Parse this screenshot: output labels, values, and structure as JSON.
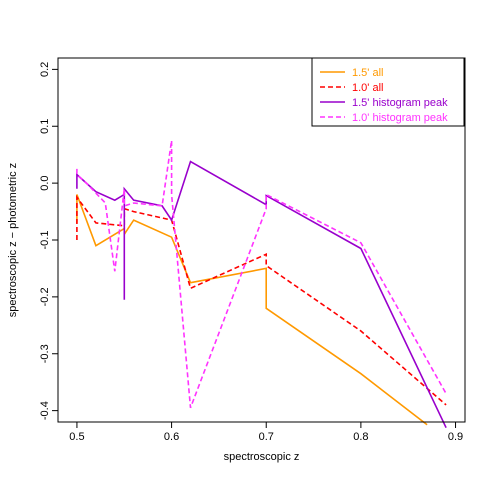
{
  "chart_data": {
    "type": "line",
    "title": "",
    "xlabel": "spectroscopic z",
    "ylabel": "spectroscopic z − photometric z",
    "xlim": [
      0.48,
      0.91
    ],
    "ylim": [
      -0.42,
      0.22
    ],
    "x_ticks": [
      "0.5",
      "0.6",
      "0.7",
      "0.8",
      "0.9"
    ],
    "y_ticks": [
      "-0.4",
      "-0.3",
      "-0.2",
      "-0.1",
      "0.0",
      "0.1",
      "0.2"
    ],
    "grid": false,
    "legend_position": "top-right",
    "series": [
      {
        "name": "1.5' all",
        "color": "#ff9900",
        "dashed": false,
        "x": [
          0.5,
          0.5,
          0.52,
          0.55,
          0.55,
          0.56,
          0.6,
          0.62,
          0.7,
          0.7,
          0.8,
          0.87
        ],
        "y": [
          -0.07,
          -0.02,
          -0.11,
          -0.08,
          -0.09,
          -0.065,
          -0.095,
          -0.175,
          -0.15,
          -0.22,
          -0.335,
          -0.425
        ]
      },
      {
        "name": "1.0' all",
        "color": "#ff0000",
        "dashed": true,
        "x": [
          0.5,
          0.5,
          0.52,
          0.55,
          0.55,
          0.56,
          0.6,
          0.62,
          0.7,
          0.7,
          0.8,
          0.89
        ],
        "y": [
          -0.1,
          -0.025,
          -0.07,
          -0.075,
          -0.045,
          -0.05,
          -0.065,
          -0.185,
          -0.125,
          -0.145,
          -0.26,
          -0.39
        ]
      },
      {
        "name": "1.5' histogram peak",
        "color": "#9900cc",
        "dashed": false,
        "x": [
          0.5,
          0.5,
          0.52,
          0.54,
          0.55,
          0.55,
          0.55,
          0.56,
          0.59,
          0.6,
          0.62,
          0.7,
          0.7,
          0.8,
          0.89
        ],
        "y": [
          -0.01,
          0.015,
          -0.015,
          -0.03,
          -0.02,
          -0.205,
          -0.01,
          -0.03,
          -0.04,
          -0.065,
          0.038,
          -0.038,
          -0.022,
          -0.115,
          -0.43
        ]
      },
      {
        "name": "1.0' histogram peak",
        "color": "#ff33ff",
        "dashed": true,
        "x": [
          0.5,
          0.5,
          0.51,
          0.53,
          0.54,
          0.55,
          0.55,
          0.56,
          0.59,
          0.6,
          0.6,
          0.62,
          0.7,
          0.7,
          0.8,
          0.89
        ],
        "y": [
          0.025,
          0.015,
          0.0,
          -0.035,
          -0.155,
          -0.01,
          -0.04,
          -0.035,
          -0.04,
          0.075,
          -0.02,
          -0.395,
          -0.045,
          -0.02,
          -0.105,
          -0.37
        ]
      }
    ]
  }
}
